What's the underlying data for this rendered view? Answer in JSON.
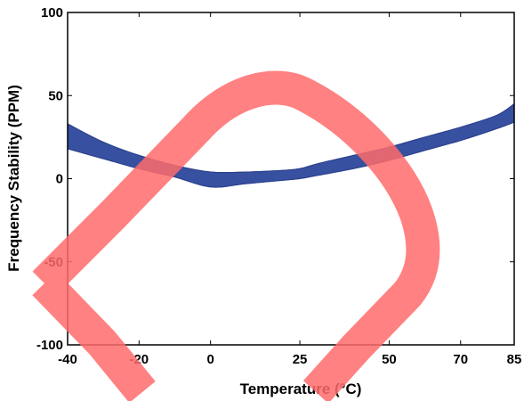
{
  "chart_data": {
    "type": "line",
    "title": "",
    "xlabel": "Temperature (°C)",
    "ylabel": "Frequency Stability (PPM)",
    "xlim": [
      -40,
      85
    ],
    "ylim": [
      -100,
      100
    ],
    "x_ticks": [
      -40,
      -20,
      0,
      25,
      50,
      70,
      85
    ],
    "y_ticks": [
      -100,
      -50,
      0,
      50,
      100
    ],
    "grid": false,
    "series": [
      {
        "color": "#3850a0",
        "x": [
          -40,
          -30,
          -20,
          -10,
          0,
          10,
          20,
          25,
          30,
          40,
          50,
          60,
          70,
          80,
          85
        ],
        "y_upper": [
          33,
          22,
          14,
          8,
          4,
          4,
          5,
          6,
          9,
          14,
          19,
          25,
          31,
          38,
          45
        ],
        "y_lower": [
          18,
          12,
          6,
          1,
          -5,
          -3,
          -1,
          0,
          2,
          6,
          11,
          17,
          23,
          30,
          34
        ]
      }
    ]
  },
  "overlay": {
    "name": "red-diamond-check-mark",
    "color": "#ff6b6b",
    "opacity": 0.85
  }
}
